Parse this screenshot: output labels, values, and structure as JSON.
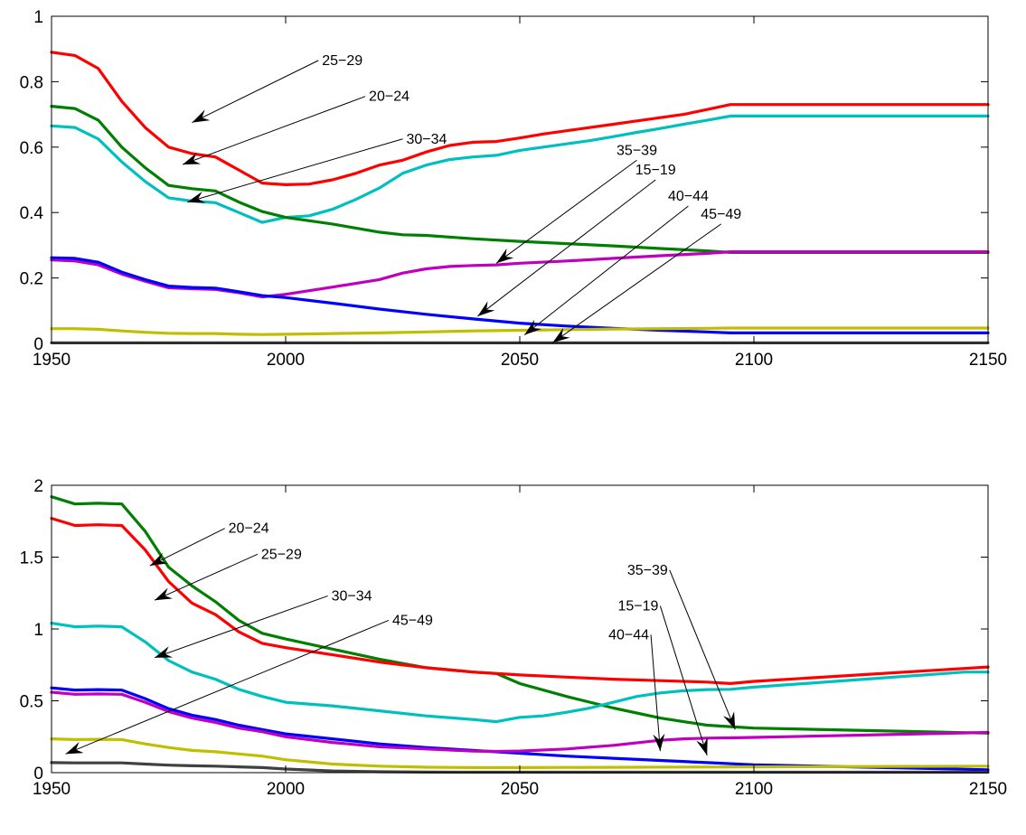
{
  "chart_data": [
    {
      "type": "line",
      "xlim": [
        1950,
        2150
      ],
      "ylim": [
        0,
        1
      ],
      "xticks": [
        1950,
        2000,
        2050,
        2100,
        2150
      ],
      "yticks": [
        0,
        0.2,
        0.4,
        0.6,
        0.8,
        1
      ],
      "xtick_labels": [
        "1950",
        "2000",
        "2050",
        "2100",
        "2150"
      ],
      "ytick_labels": [
        "0",
        "0.2",
        "0.4",
        "0.6",
        "0.8",
        "1"
      ],
      "grid": false,
      "series": [
        {
          "color": "#ff0000",
          "x": [
            1950,
            1955,
            1960,
            1965,
            1970,
            1975,
            1980,
            1985,
            1990,
            1995,
            2000,
            2005,
            2010,
            2015,
            2020,
            2025,
            2030,
            2035,
            2040,
            2045,
            2050,
            2055,
            2060,
            2065,
            2070,
            2075,
            2080,
            2085,
            2090,
            2095,
            2100,
            2150
          ],
          "y": [
            0.89,
            0.88,
            0.84,
            0.74,
            0.66,
            0.6,
            0.58,
            0.57,
            0.53,
            0.49,
            0.485,
            0.487,
            0.5,
            0.52,
            0.545,
            0.56,
            0.585,
            0.605,
            0.615,
            0.617,
            0.628,
            0.64,
            0.65,
            0.66,
            0.67,
            0.68,
            0.69,
            0.7,
            0.715,
            0.73,
            0.73,
            0.73
          ]
        },
        {
          "color": "#00bfbf",
          "x": [
            1950,
            1955,
            1960,
            1965,
            1970,
            1975,
            1980,
            1985,
            1990,
            1995,
            2000,
            2005,
            2010,
            2015,
            2020,
            2025,
            2030,
            2035,
            2040,
            2045,
            2050,
            2055,
            2060,
            2065,
            2070,
            2075,
            2080,
            2085,
            2090,
            2095,
            2100,
            2150
          ],
          "y": [
            0.665,
            0.66,
            0.625,
            0.555,
            0.495,
            0.445,
            0.435,
            0.43,
            0.4,
            0.37,
            0.385,
            0.39,
            0.41,
            0.44,
            0.475,
            0.52,
            0.545,
            0.562,
            0.57,
            0.575,
            0.59,
            0.6,
            0.61,
            0.62,
            0.632,
            0.645,
            0.657,
            0.67,
            0.682,
            0.695,
            0.695,
            0.695
          ]
        },
        {
          "color": "#008000",
          "x": [
            1950,
            1955,
            1960,
            1965,
            1970,
            1975,
            1980,
            1985,
            1990,
            1995,
            2000,
            2010,
            2020,
            2025,
            2030,
            2040,
            2050,
            2060,
            2070,
            2080,
            2090,
            2095,
            2100,
            2150
          ],
          "y": [
            0.725,
            0.718,
            0.682,
            0.6,
            0.537,
            0.483,
            0.473,
            0.466,
            0.432,
            0.403,
            0.385,
            0.365,
            0.34,
            0.332,
            0.33,
            0.32,
            0.312,
            0.305,
            0.298,
            0.29,
            0.283,
            0.278,
            0.278,
            0.278
          ]
        },
        {
          "color": "#bf00bf",
          "x": [
            1950,
            1955,
            1960,
            1965,
            1970,
            1975,
            1980,
            1985,
            1990,
            1995,
            2000,
            2010,
            2020,
            2025,
            2030,
            2035,
            2040,
            2045,
            2050,
            2060,
            2070,
            2080,
            2090,
            2095,
            2100,
            2150
          ],
          "y": [
            0.255,
            0.252,
            0.24,
            0.212,
            0.19,
            0.17,
            0.167,
            0.165,
            0.155,
            0.142,
            0.15,
            0.172,
            0.195,
            0.215,
            0.228,
            0.235,
            0.238,
            0.24,
            0.245,
            0.252,
            0.26,
            0.268,
            0.275,
            0.28,
            0.28,
            0.28
          ]
        },
        {
          "color": "#0000ff",
          "x": [
            1950,
            1955,
            1960,
            1965,
            1970,
            1975,
            1980,
            1985,
            1990,
            1995,
            2000,
            2010,
            2020,
            2030,
            2040,
            2050,
            2060,
            2070,
            2080,
            2090,
            2095,
            2100,
            2150
          ],
          "y": [
            0.262,
            0.26,
            0.248,
            0.218,
            0.195,
            0.175,
            0.171,
            0.169,
            0.158,
            0.146,
            0.14,
            0.123,
            0.105,
            0.089,
            0.075,
            0.062,
            0.053,
            0.046,
            0.04,
            0.035,
            0.032,
            0.032,
            0.032
          ]
        },
        {
          "color": "#bfbf00",
          "x": [
            1950,
            1955,
            1960,
            1965,
            1970,
            1975,
            1980,
            1985,
            1990,
            1995,
            2000,
            2010,
            2020,
            2030,
            2040,
            2050,
            2060,
            2070,
            2080,
            2090,
            2095,
            2100,
            2150
          ],
          "y": [
            0.045,
            0.045,
            0.043,
            0.038,
            0.034,
            0.031,
            0.03,
            0.03,
            0.028,
            0.027,
            0.028,
            0.03,
            0.032,
            0.035,
            0.038,
            0.04,
            0.042,
            0.044,
            0.045,
            0.046,
            0.047,
            0.047,
            0.047
          ]
        },
        {
          "color": "#404040",
          "x": [
            1950,
            2000,
            2100,
            2150
          ],
          "y": [
            0.002,
            0.002,
            0.002,
            0.002
          ]
        }
      ],
      "annotations": [
        {
          "text": "25−29",
          "x_text": 2007,
          "y_text": 0.865,
          "x_arrow": 1980,
          "y_arrow": 0.675,
          "label_anchor": "left"
        },
        {
          "text": "20−24",
          "x_text": 2017,
          "y_text": 0.755,
          "x_arrow": 1978,
          "y_arrow": 0.547,
          "label_anchor": "left"
        },
        {
          "text": "30−34",
          "x_text": 2025,
          "y_text": 0.625,
          "x_arrow": 1979,
          "y_arrow": 0.432,
          "label_anchor": "left"
        },
        {
          "text": "35−39",
          "x_text": 2075,
          "y_text": 0.56,
          "x_arrow": 2045,
          "y_arrow": 0.245,
          "label_anchor": "center"
        },
        {
          "text": "15−19",
          "x_text": 2079,
          "y_text": 0.5,
          "x_arrow": 2041,
          "y_arrow": 0.083,
          "label_anchor": "center"
        },
        {
          "text": "40−44",
          "x_text": 2086,
          "y_text": 0.42,
          "x_arrow": 2051,
          "y_arrow": 0.026,
          "label_anchor": "center"
        },
        {
          "text": "45−49",
          "x_text": 2093,
          "y_text": 0.365,
          "x_arrow": 2057,
          "y_arrow": 0.002,
          "label_anchor": "center"
        }
      ]
    },
    {
      "type": "line",
      "xlim": [
        1950,
        2150
      ],
      "ylim": [
        0,
        2
      ],
      "xticks": [
        1950,
        2000,
        2050,
        2100,
        2150
      ],
      "yticks": [
        0,
        0.5,
        1,
        1.5,
        2
      ],
      "xtick_labels": [
        "1950",
        "2000",
        "2050",
        "2100",
        "2150"
      ],
      "ytick_labels": [
        "0",
        "0.5",
        "1",
        "1.5",
        "2"
      ],
      "grid": false,
      "series": [
        {
          "color": "#008000",
          "x": [
            1950,
            1955,
            1960,
            1965,
            1970,
            1975,
            1980,
            1985,
            1990,
            1995,
            2000,
            2010,
            2020,
            2030,
            2040,
            2045,
            2050,
            2060,
            2070,
            2080,
            2090,
            2095,
            2100,
            2150
          ],
          "y": [
            1.92,
            1.87,
            1.875,
            1.87,
            1.68,
            1.43,
            1.3,
            1.19,
            1.06,
            0.97,
            0.93,
            0.86,
            0.79,
            0.73,
            0.7,
            0.69,
            0.62,
            0.53,
            0.45,
            0.38,
            0.33,
            0.32,
            0.31,
            0.275
          ]
        },
        {
          "color": "#ff0000",
          "x": [
            1950,
            1955,
            1960,
            1965,
            1970,
            1975,
            1980,
            1985,
            1990,
            1995,
            2000,
            2010,
            2020,
            2030,
            2040,
            2050,
            2060,
            2070,
            2080,
            2090,
            2095,
            2100,
            2150
          ],
          "y": [
            1.77,
            1.72,
            1.725,
            1.72,
            1.55,
            1.33,
            1.18,
            1.1,
            0.98,
            0.9,
            0.87,
            0.82,
            0.77,
            0.73,
            0.7,
            0.68,
            0.665,
            0.65,
            0.64,
            0.63,
            0.62,
            0.635,
            0.735
          ]
        },
        {
          "color": "#00bfbf",
          "x": [
            1950,
            1955,
            1960,
            1965,
            1970,
            1975,
            1980,
            1985,
            1990,
            1995,
            2000,
            2010,
            2020,
            2030,
            2040,
            2045,
            2050,
            2055,
            2060,
            2065,
            2070,
            2075,
            2080,
            2085,
            2090,
            2095,
            2100,
            2145,
            2150
          ],
          "y": [
            1.04,
            1.015,
            1.02,
            1.015,
            0.91,
            0.78,
            0.7,
            0.65,
            0.58,
            0.53,
            0.49,
            0.465,
            0.43,
            0.395,
            0.37,
            0.355,
            0.385,
            0.395,
            0.42,
            0.45,
            0.49,
            0.53,
            0.555,
            0.57,
            0.578,
            0.58,
            0.595,
            0.7,
            0.7
          ]
        },
        {
          "color": "#0000ff",
          "x": [
            1950,
            1955,
            1960,
            1965,
            1970,
            1975,
            1980,
            1985,
            1990,
            1995,
            2000,
            2010,
            2020,
            2030,
            2040,
            2050,
            2060,
            2070,
            2080,
            2090,
            2100,
            2150
          ],
          "y": [
            0.59,
            0.575,
            0.578,
            0.575,
            0.515,
            0.445,
            0.4,
            0.37,
            0.33,
            0.3,
            0.27,
            0.235,
            0.2,
            0.175,
            0.155,
            0.135,
            0.115,
            0.1,
            0.085,
            0.07,
            0.055,
            0.02
          ]
        },
        {
          "color": "#bf00bf",
          "x": [
            1950,
            1955,
            1960,
            1965,
            1970,
            1975,
            1980,
            1985,
            1990,
            1995,
            2000,
            2010,
            2020,
            2030,
            2040,
            2045,
            2050,
            2060,
            2070,
            2080,
            2085,
            2090,
            2095,
            2100,
            2150
          ],
          "y": [
            0.56,
            0.545,
            0.548,
            0.545,
            0.49,
            0.425,
            0.38,
            0.35,
            0.31,
            0.285,
            0.25,
            0.21,
            0.18,
            0.165,
            0.15,
            0.148,
            0.15,
            0.165,
            0.19,
            0.225,
            0.235,
            0.24,
            0.242,
            0.245,
            0.28
          ]
        },
        {
          "color": "#bfbf00",
          "x": [
            1950,
            1955,
            1960,
            1965,
            1970,
            1975,
            1980,
            1985,
            1990,
            1995,
            2000,
            2010,
            2020,
            2030,
            2040,
            2050,
            2100,
            2150
          ],
          "y": [
            0.235,
            0.23,
            0.232,
            0.23,
            0.2,
            0.175,
            0.155,
            0.145,
            0.13,
            0.115,
            0.09,
            0.06,
            0.045,
            0.038,
            0.035,
            0.035,
            0.04,
            0.045
          ]
        },
        {
          "color": "#404040",
          "x": [
            1950,
            1955,
            1960,
            1965,
            1970,
            1975,
            1980,
            1985,
            1990,
            1995,
            2000,
            2010,
            2020,
            2030,
            2040,
            2100,
            2150
          ],
          "y": [
            0.07,
            0.068,
            0.068,
            0.068,
            0.06,
            0.052,
            0.048,
            0.045,
            0.04,
            0.035,
            0.025,
            0.012,
            0.006,
            0.004,
            0.003,
            0.003,
            0.003
          ]
        }
      ],
      "annotations": [
        {
          "text": "20−24",
          "x_text": 1987,
          "y_text": 1.7,
          "x_arrow": 1971,
          "y_arrow": 1.44,
          "label_anchor": "left"
        },
        {
          "text": "25−29",
          "x_text": 1994,
          "y_text": 1.52,
          "x_arrow": 1972,
          "y_arrow": 1.2,
          "label_anchor": "left"
        },
        {
          "text": "30−34",
          "x_text": 2009,
          "y_text": 1.23,
          "x_arrow": 1972,
          "y_arrow": 0.8,
          "label_anchor": "left"
        },
        {
          "text": "45−49",
          "x_text": 2022,
          "y_text": 1.06,
          "x_arrow": 1953,
          "y_arrow": 0.13,
          "label_anchor": "left"
        },
        {
          "text": "35−39",
          "x_text": 2082,
          "y_text": 1.41,
          "x_arrow": 2096,
          "y_arrow": 0.3,
          "label_anchor": "right"
        },
        {
          "text": "15−19",
          "x_text": 2080,
          "y_text": 1.16,
          "x_arrow": 2090,
          "y_arrow": 0.12,
          "label_anchor": "right"
        },
        {
          "text": "40−44",
          "x_text": 2078,
          "y_text": 0.96,
          "x_arrow": 2080,
          "y_arrow": 0.15,
          "label_anchor": "right"
        }
      ]
    }
  ]
}
